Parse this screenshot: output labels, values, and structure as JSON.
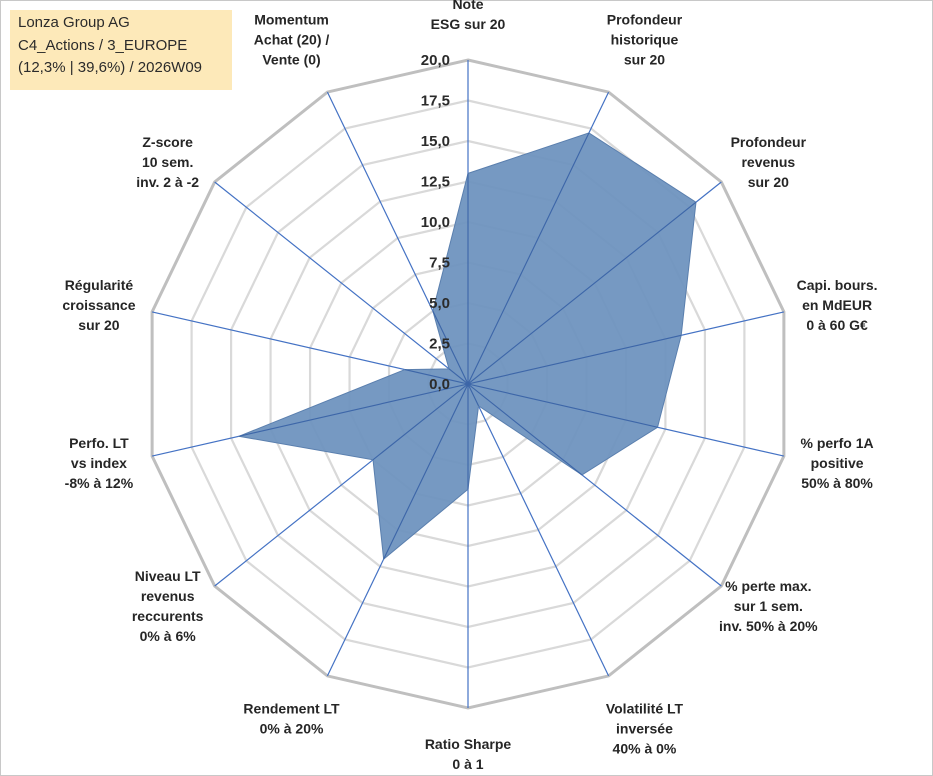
{
  "info": {
    "company": "Lonza Group AG",
    "category": "C4_Actions / 3_EUROPE",
    "stats": "(12,3% | 39,6%) / 2026W09"
  },
  "chart_data": {
    "type": "radar",
    "title": "",
    "rmin": 0,
    "rmax": 20,
    "ticks": [
      "0,0",
      "2,5",
      "5,0",
      "7,5",
      "10,0",
      "12,5",
      "15,0",
      "17,5",
      "20,0"
    ],
    "tick_values": [
      0,
      2.5,
      5,
      7.5,
      10,
      12.5,
      15,
      17.5,
      20
    ],
    "gridlines": [
      2.5,
      5,
      7.5,
      10,
      12.5,
      15,
      17.5,
      20
    ],
    "fill_color": "#6f93bf",
    "axis_line_color": "#4472c4",
    "grid_color": "#d9d9d9",
    "outer_grid_color": "#bfbfbf",
    "axes": [
      {
        "label": [
          "Note",
          "ESG sur 20"
        ],
        "value": 13.0
      },
      {
        "label": [
          "Profondeur",
          "historique",
          "sur 20"
        ],
        "value": 17.2
      },
      {
        "label": [
          "Profondeur",
          "revenus",
          "sur 20"
        ],
        "value": 18.0
      },
      {
        "label": [
          "Capi. bours.",
          "en MdEUR",
          "0 à 60 G€"
        ],
        "value": 13.5
      },
      {
        "label": [
          "% perfo 1A",
          "positive",
          "50% à 80%"
        ],
        "value": 12.0
      },
      {
        "label": [
          "% perte max.",
          "sur 1 sem.",
          "inv. 50% à 20%"
        ],
        "value": 9.0
      },
      {
        "label": [
          "Volatilité LT",
          "inversée",
          "40% à 0%"
        ],
        "value": 1.5
      },
      {
        "label": [
          "Ratio Sharpe",
          "0 à 1"
        ],
        "value": 6.5
      },
      {
        "label": [
          "Rendement LT",
          "0% à 20%"
        ],
        "value": 12.0
      },
      {
        "label": [
          "Niveau LT",
          "revenus",
          "reccurents",
          "0% à 6%"
        ],
        "value": 7.5
      },
      {
        "label": [
          "Perfo. LT",
          "vs index",
          "-8% à 12%"
        ],
        "value": 14.5
      },
      {
        "label": [
          "Régularité",
          "croissance",
          "sur 20"
        ],
        "value": 4.0
      },
      {
        "label": [
          "Z-score",
          "10 sem.",
          "inv. 2 à -2"
        ],
        "value": 1.5
      },
      {
        "label": [
          "Momentum",
          "Achat (20) /",
          "Vente (0)"
        ],
        "value": 5.0
      }
    ]
  }
}
